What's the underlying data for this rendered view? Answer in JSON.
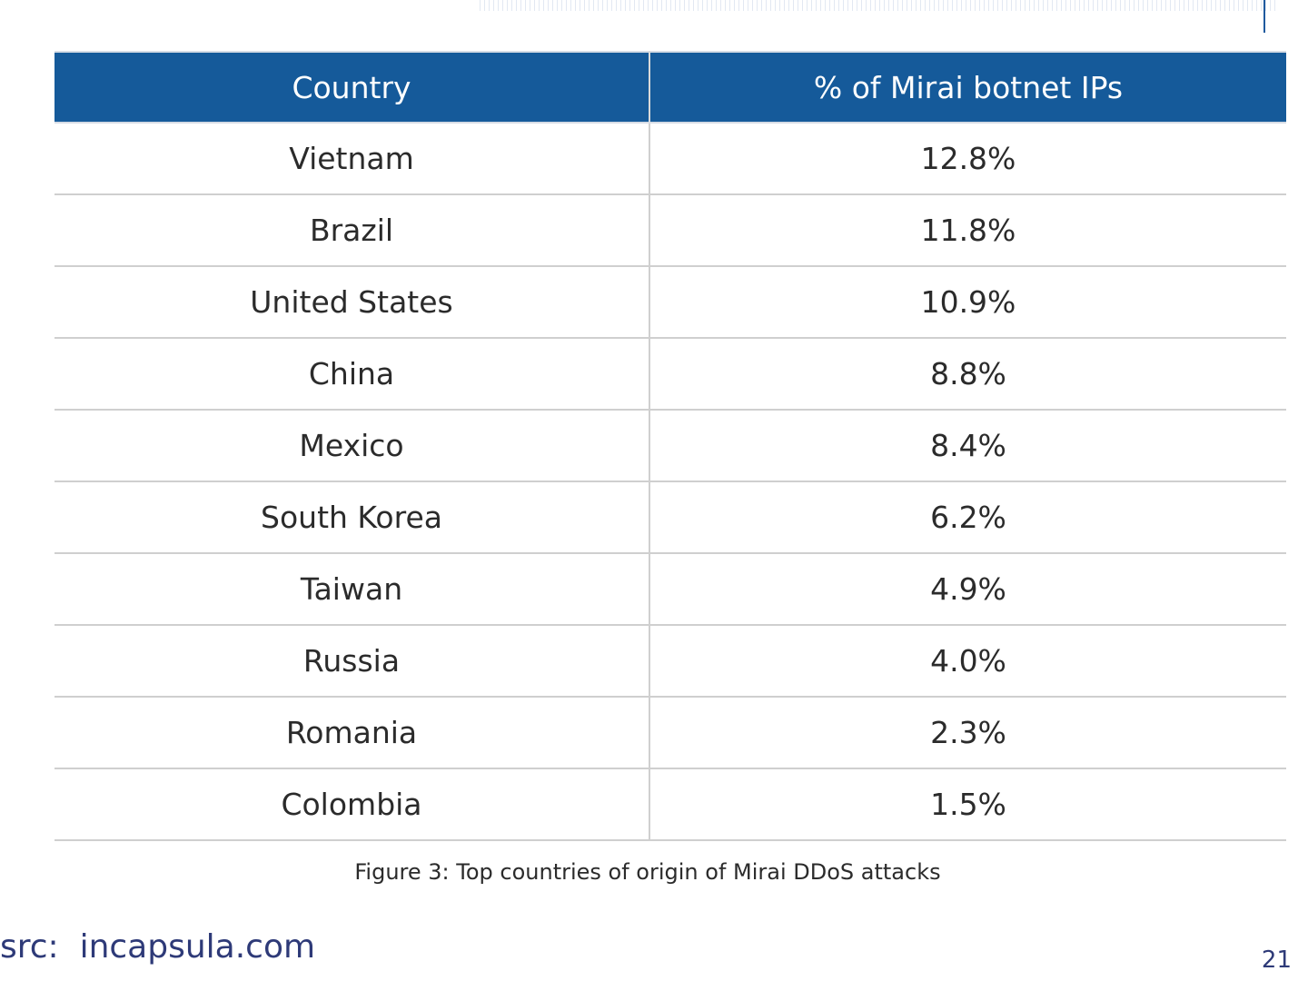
{
  "table": {
    "headers": [
      "Country",
      "% of Mirai botnet IPs"
    ],
    "rows": [
      {
        "country": "Vietnam",
        "percent": "12.8%"
      },
      {
        "country": "Brazil",
        "percent": "11.8%"
      },
      {
        "country": "United States",
        "percent": "10.9%"
      },
      {
        "country": "China",
        "percent": "8.8%"
      },
      {
        "country": "Mexico",
        "percent": "8.4%"
      },
      {
        "country": "South Korea",
        "percent": "6.2%"
      },
      {
        "country": "Taiwan",
        "percent": "4.9%"
      },
      {
        "country": "Russia",
        "percent": "4.0%"
      },
      {
        "country": "Romania",
        "percent": "2.3%"
      },
      {
        "country": "Colombia",
        "percent": "1.5%"
      }
    ]
  },
  "caption": "Figure 3: Top countries of origin of Mirai DDoS attacks",
  "source": "src:  incapsula.com",
  "page_number": "21",
  "colors": {
    "header_bg": "#155a9a",
    "source_text": "#2e3a78"
  }
}
